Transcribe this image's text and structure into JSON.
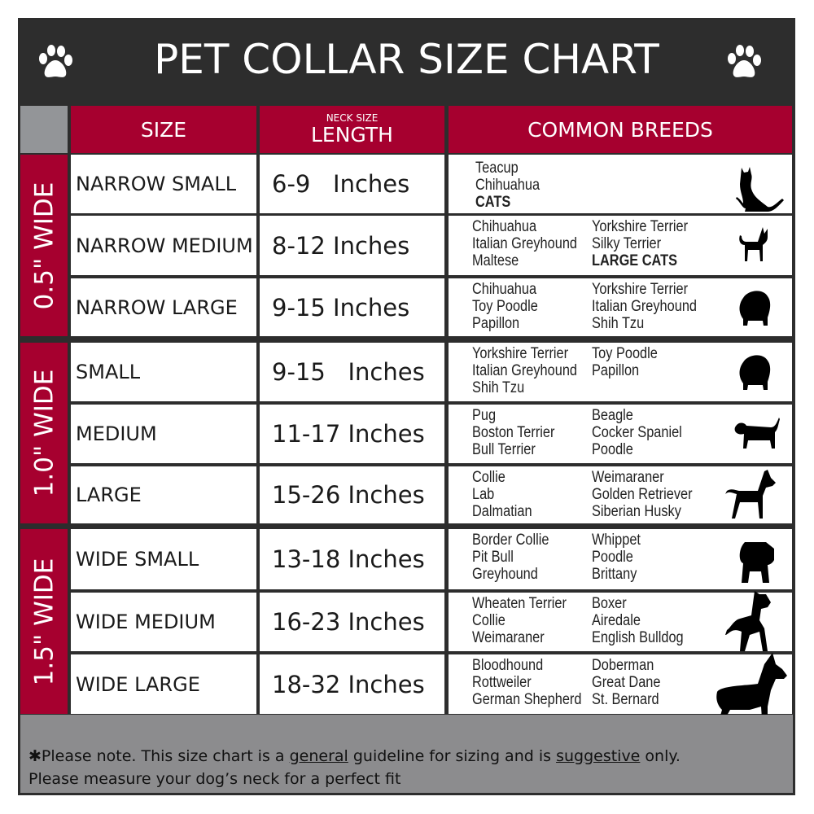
{
  "title": "PET COLLAR SIZE CHART",
  "colors": {
    "header": "#2d2d2d",
    "accent": "#a6002f",
    "corner": "#939598",
    "footer": "#8c8c8e"
  },
  "columns": {
    "size": "SIZE",
    "length_small": "NECK SIZE",
    "length": "LENGTH",
    "breeds": "COMMON BREEDS"
  },
  "groups": [
    {
      "label": "0.5\" WIDE",
      "rows": [
        {
          "size": "NARROW SMALL",
          "length": "6-9   Inches",
          "icon": "cat-sitting-icon",
          "col1": [
            {
              "t": "Teacup"
            },
            {
              "t": "Chihuahua"
            },
            {
              "t": "CATS",
              "b": true
            }
          ],
          "col2": []
        },
        {
          "size": "NARROW MEDIUM",
          "length": "8-12 Inches",
          "icon": "chihuahua-icon",
          "col1": [
            {
              "t": "Chihuahua"
            },
            {
              "t": "Italian Greyhound"
            },
            {
              "t": "Maltese"
            }
          ],
          "col2": [
            {
              "t": "Yorkshire Terrier"
            },
            {
              "t": "Silky Terrier"
            },
            {
              "t": "LARGE CATS",
              "b": true
            }
          ]
        },
        {
          "size": "NARROW LARGE",
          "length": "9-15 Inches",
          "icon": "fluffy-dog-icon",
          "col1": [
            {
              "t": "Chihuahua"
            },
            {
              "t": "Toy Poodle"
            },
            {
              "t": "Papillon"
            }
          ],
          "col2": [
            {
              "t": "Yorkshire Terrier"
            },
            {
              "t": "Italian Greyhound"
            },
            {
              "t": "Shih Tzu"
            }
          ]
        }
      ]
    },
    {
      "label": "1.0\" WIDE",
      "rows": [
        {
          "size": "SMALL",
          "length": "9-15   Inches",
          "icon": "fluffy-dog-icon",
          "col1": [
            {
              "t": "Yorkshire Terrier"
            },
            {
              "t": "Italian Greyhound"
            },
            {
              "t": "Shih Tzu"
            }
          ],
          "col2": [
            {
              "t": "Toy Poodle"
            },
            {
              "t": "Papillon"
            }
          ]
        },
        {
          "size": "MEDIUM",
          "length": "11-17 Inches",
          "icon": "dachshund-icon",
          "col1": [
            {
              "t": "Pug"
            },
            {
              "t": "Boston Terrier"
            },
            {
              "t": "Bull Terrier"
            }
          ],
          "col2": [
            {
              "t": "Beagle"
            },
            {
              "t": "Cocker Spaniel"
            },
            {
              "t": "Poodle"
            }
          ]
        },
        {
          "size": "LARGE",
          "length": "15-26 Inches",
          "icon": "shepherd-dog-icon",
          "col1": [
            {
              "t": "Collie"
            },
            {
              "t": "Lab"
            },
            {
              "t": "Dalmatian"
            }
          ],
          "col2": [
            {
              "t": "Weimaraner"
            },
            {
              "t": "Golden Retriever"
            },
            {
              "t": "Siberian Husky"
            }
          ]
        }
      ]
    },
    {
      "label": "1.5\" WIDE",
      "rows": [
        {
          "size": "WIDE SMALL",
          "length": "13-18 Inches",
          "icon": "bulldog-icon",
          "col1": [
            {
              "t": "Border Collie"
            },
            {
              "t": "Pit Bull"
            },
            {
              "t": "Greyhound"
            }
          ],
          "col2": [
            {
              "t": "Whippet"
            },
            {
              "t": "Poodle"
            },
            {
              "t": "Brittany"
            }
          ]
        },
        {
          "size": "WIDE MEDIUM",
          "length": "16-23 Inches",
          "icon": "pitbull-icon",
          "col1": [
            {
              "t": "Wheaten Terrier"
            },
            {
              "t": "Collie"
            },
            {
              "t": "Weimaraner"
            }
          ],
          "col2": [
            {
              "t": "Boxer"
            },
            {
              "t": "Airedale"
            },
            {
              "t": "English Bulldog"
            }
          ]
        },
        {
          "size": "WIDE LARGE",
          "length": "18-32 Inches",
          "icon": "doberman-icon",
          "col1": [
            {
              "t": "Bloodhound"
            },
            {
              "t": "Rottweiler"
            },
            {
              "t": "German Shepherd"
            }
          ],
          "col2": [
            {
              "t": "Doberman"
            },
            {
              "t": "Great Dane"
            },
            {
              "t": "St. Bernard"
            }
          ]
        }
      ]
    }
  ],
  "footer": {
    "l1_a": "✱Please note. This size chart is a ",
    "l1_u1": "general",
    "l1_b": " guideline for sizing and is ",
    "l1_u2": "suggestive",
    "l1_c": " only.",
    "l2": "Please measure your dog’s neck for a perfect fit"
  }
}
